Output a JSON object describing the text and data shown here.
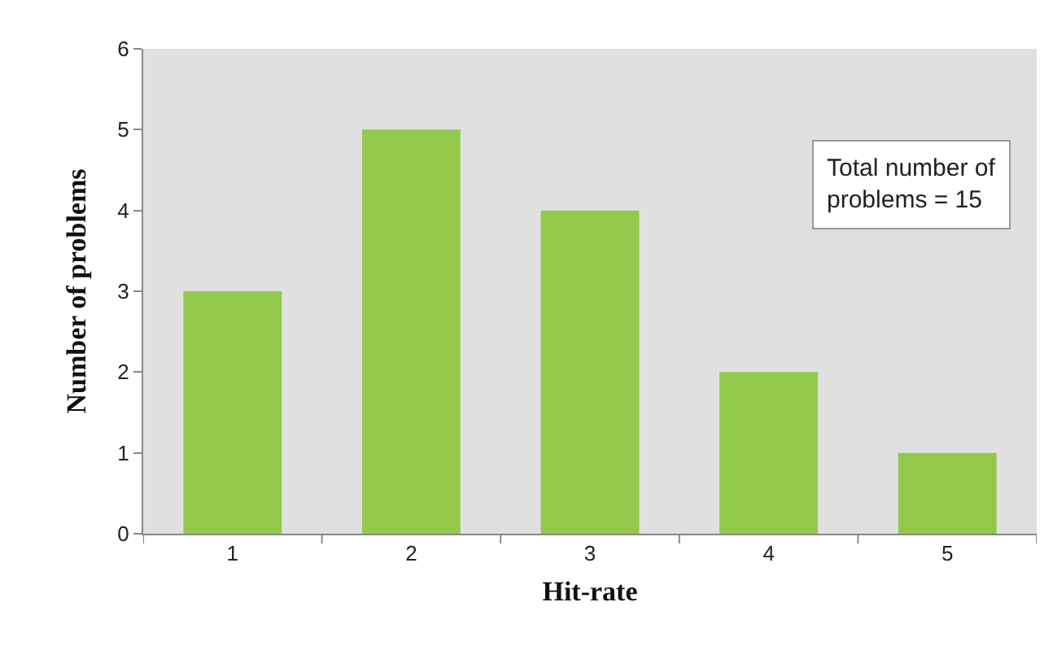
{
  "chart_data": {
    "type": "bar",
    "xlabel": "Hit-rate",
    "ylabel": "Number of problems",
    "categories": [
      "1",
      "2",
      "3",
      "4",
      "5"
    ],
    "values": [
      3,
      5,
      4,
      2,
      1
    ],
    "color": "#92c94a",
    "ylim": [
      0,
      6
    ],
    "yticks": [
      0,
      1,
      2,
      3,
      4,
      5,
      6
    ],
    "grid": false,
    "annotations": [
      "Total number of problems = 15"
    ]
  }
}
